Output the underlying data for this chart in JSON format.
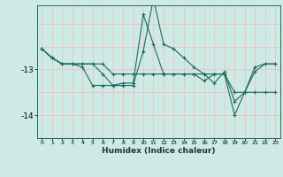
{
  "xlabel": "Humidex (Indice chaleur)",
  "bg_color": "#ceeae4",
  "line_color": "#1a6b5e",
  "grid_color": "#f5b8b8",
  "x": [
    0,
    1,
    2,
    3,
    4,
    5,
    6,
    7,
    8,
    9,
    10,
    11,
    12,
    13,
    14,
    15,
    16,
    17,
    18,
    19,
    20,
    21,
    22,
    23
  ],
  "series1": [
    -12.55,
    -12.75,
    -12.88,
    -12.88,
    -12.88,
    -12.88,
    -12.88,
    -13.1,
    -13.1,
    -13.1,
    -13.1,
    -13.1,
    -13.1,
    -13.1,
    -13.1,
    -13.1,
    -13.1,
    -13.1,
    -13.1,
    -13.5,
    -13.5,
    -13.5,
    -13.5,
    -13.5
  ],
  "series2": [
    -12.55,
    -12.75,
    -12.88,
    -12.88,
    -12.88,
    -12.88,
    -13.1,
    -13.35,
    -13.3,
    -13.3,
    -11.8,
    -12.45,
    -13.1,
    -13.1,
    -13.1,
    -13.1,
    -13.25,
    -13.1,
    -13.1,
    -14.0,
    -13.5,
    -13.05,
    -12.88,
    -12.88
  ],
  "series3": [
    -12.55,
    -12.75,
    -12.88,
    -12.88,
    -12.95,
    -13.35,
    -13.35,
    -13.35,
    -13.35,
    -13.35,
    -12.6,
    -11.45,
    -12.45,
    -12.55,
    -12.75,
    -12.95,
    -13.1,
    -13.3,
    -13.05,
    -13.7,
    -13.5,
    -12.95,
    -12.88,
    -12.88
  ],
  "ylim": [
    -14.5,
    -11.6
  ],
  "yticks": [
    -14,
    -13
  ],
  "yticklabels": [
    "-14",
    "-13"
  ],
  "xlim": [
    -0.5,
    23.5
  ],
  "figsize": [
    3.2,
    2.0
  ],
  "dpi": 100
}
